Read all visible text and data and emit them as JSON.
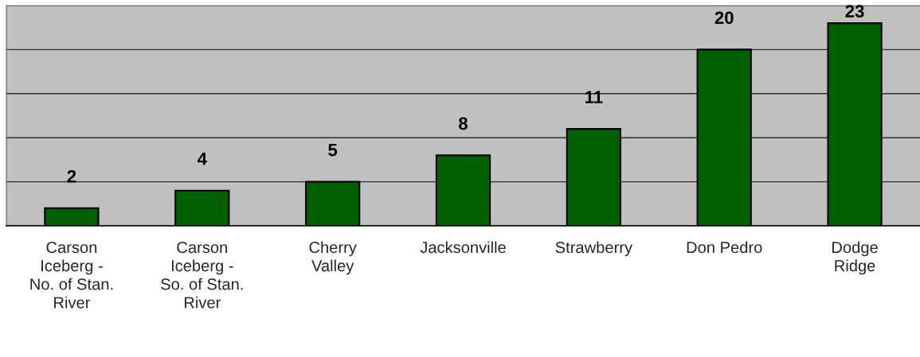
{
  "chart_data": {
    "type": "bar",
    "categories": [
      "Carson\nIceberg -\nNo. of Stan.\nRiver",
      "Carson\nIceberg -\nSo. of Stan.\nRiver",
      "Cherry\nValley",
      "Jacksonville",
      "Strawberry",
      "Don Pedro",
      "Dodge\nRidge"
    ],
    "values": [
      2,
      4,
      5,
      8,
      11,
      20,
      23
    ],
    "color": "#006000",
    "ylim": [
      0,
      25
    ],
    "yticks": [
      {
        "value": 0,
        "label": null
      },
      {
        "value": 5,
        "label": null
      },
      {
        "value": 10,
        "label": null
      },
      {
        "value": 15,
        "label": null
      },
      {
        "value": 20,
        "label": null
      },
      {
        "value": 25,
        "label": null
      }
    ],
    "tick_labels": "x",
    "grid": "y",
    "data_labels": true
  }
}
